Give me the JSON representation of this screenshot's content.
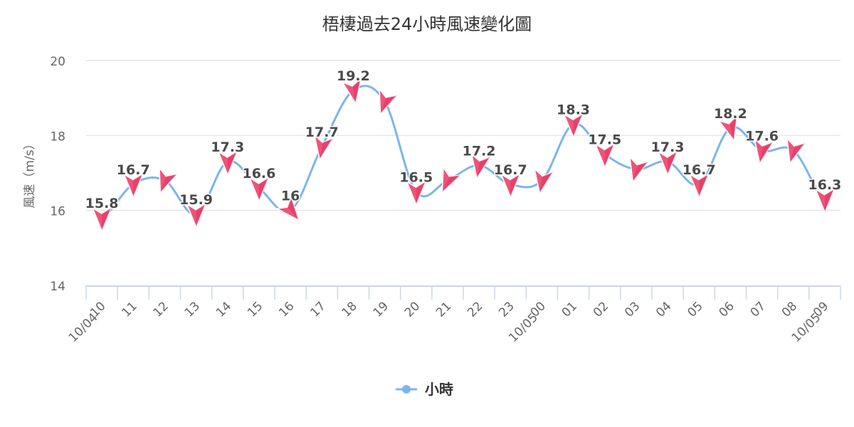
{
  "chart_data": {
    "type": "line",
    "title": "梧棲過去24小時風速變化圖",
    "ylabel": "風速（m/s）",
    "xlabel": "",
    "ylim": [
      14,
      20
    ],
    "yticks": [
      "14",
      "16",
      "18",
      "20"
    ],
    "grid": true,
    "legend_position": "bottom-center",
    "categories": [
      "10",
      "11",
      "12",
      "13",
      "14",
      "15",
      "16",
      "17",
      "18",
      "19",
      "20",
      "21",
      "22",
      "23",
      "00",
      "01",
      "02",
      "03",
      "04",
      "05",
      "06",
      "07",
      "08",
      "09"
    ],
    "date_labels": [
      {
        "index": 0,
        "text": "10/04"
      },
      {
        "index": 14,
        "text": "10/05"
      },
      {
        "index": 23,
        "text": "10/05"
      }
    ],
    "series": [
      {
        "name": "小時",
        "color": "#7cb5ec",
        "marker_color": "#f0537a",
        "values": [
          15.8,
          16.7,
          16.8,
          15.9,
          17.3,
          16.6,
          16.0,
          17.7,
          19.2,
          18.9,
          16.5,
          16.8,
          17.2,
          16.7,
          16.8,
          18.3,
          17.5,
          17.1,
          17.3,
          16.7,
          18.2,
          17.6,
          17.6,
          16.3
        ],
        "data_labels": [
          "15.8",
          "16.7",
          "",
          "15.9",
          "17.3",
          "16.6",
          "16",
          "17.7",
          "19.2",
          "",
          "16.5",
          "",
          "17.2",
          "16.7",
          "",
          "18.3",
          "17.5",
          "",
          "17.3",
          "16.7",
          "18.2",
          "17.6",
          "",
          "16.3"
        ],
        "wind_direction_deg": [
          0,
          0,
          20,
          0,
          0,
          0,
          -40,
          10,
          -10,
          20,
          0,
          25,
          10,
          0,
          10,
          0,
          0,
          15,
          0,
          0,
          -15,
          10,
          15,
          0
        ]
      }
    ]
  }
}
